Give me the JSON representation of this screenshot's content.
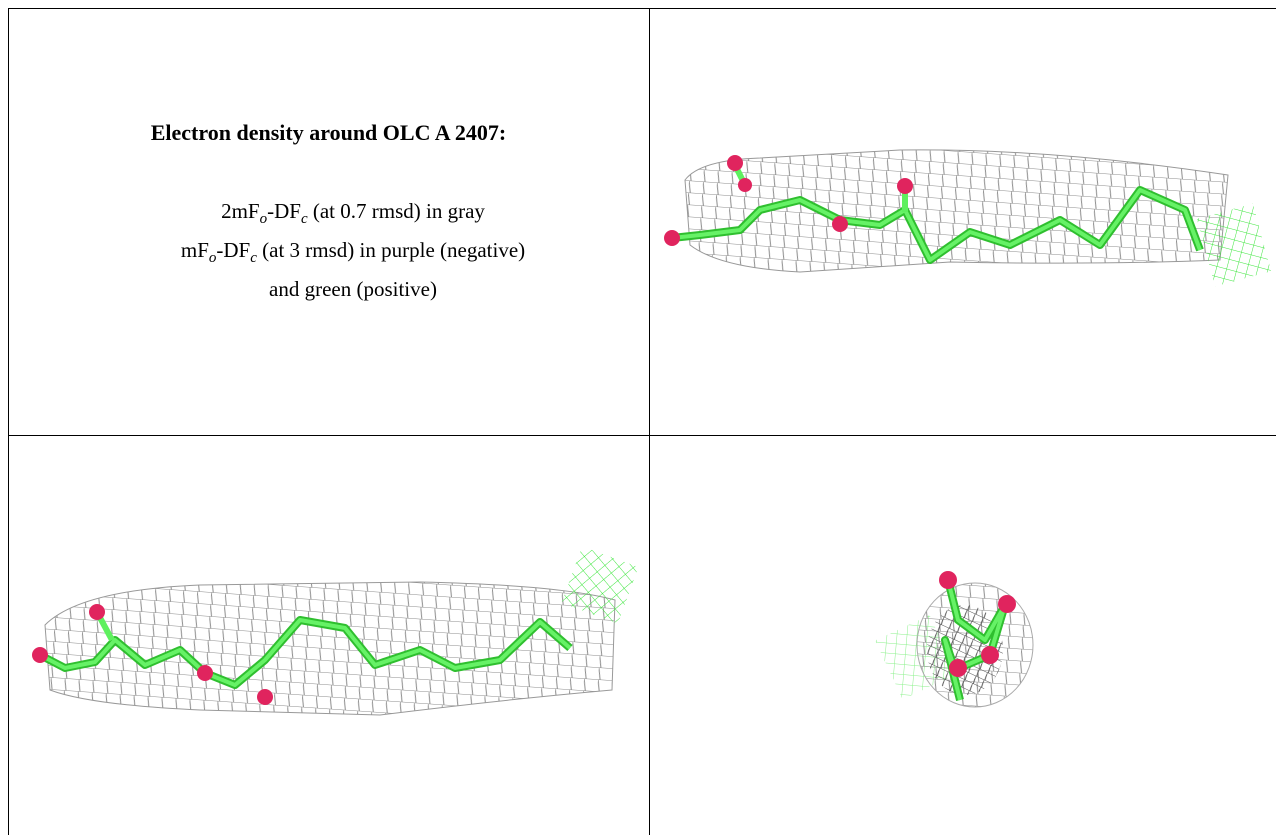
{
  "title": "Electron density around OLC A 2407:",
  "lines": [
    [
      "2mF",
      "o",
      "-DF",
      "c",
      " (at 0.7 rmsd) in gray"
    ],
    [
      "mF",
      "o",
      "-DF",
      "c",
      " (at 3 rmsd) in purple (negative)"
    ],
    [
      "and green (positive)"
    ]
  ]
}
